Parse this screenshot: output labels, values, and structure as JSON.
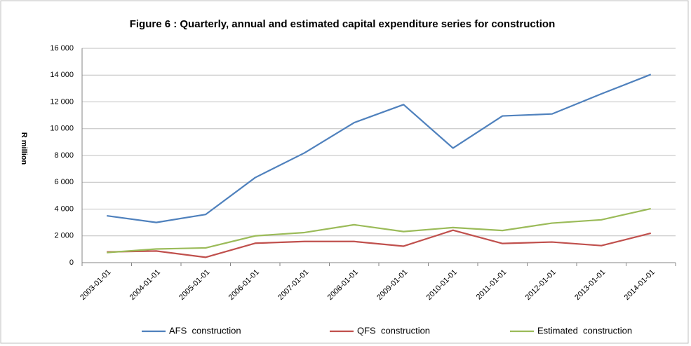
{
  "chart_data": {
    "type": "line",
    "title": "Figure 6 : Quarterly, annual and estimated capital expenditure series for construction",
    "ylabel": "R million",
    "categories": [
      "2003-01-01",
      "2004-01-01",
      "2005-01-01",
      "2006-01-01",
      "2007-01-01",
      "2008-01-01",
      "2009-01-01",
      "2010-01-01",
      "2011-01-01",
      "2012-01-01",
      "2013-01-01",
      "2014-01-01"
    ],
    "series": [
      {
        "name": "AFS  construction",
        "color": "#4f81bd",
        "values": [
          3500,
          3000,
          3600,
          6350,
          8200,
          10450,
          11800,
          8550,
          10950,
          11100,
          12600,
          14050
        ]
      },
      {
        "name": "QFS  construction",
        "color": "#c0504d",
        "values": [
          800,
          870,
          400,
          1450,
          1580,
          1580,
          1230,
          2420,
          1430,
          1540,
          1270,
          2200
        ]
      },
      {
        "name": "Estimated  construction",
        "color": "#9bbb59",
        "values": [
          750,
          1020,
          1100,
          2000,
          2250,
          2830,
          2320,
          2620,
          2400,
          2950,
          3200,
          4030
        ]
      }
    ],
    "ylim": [
      0,
      16000
    ],
    "yticks": [
      0,
      {
        "value": 2000,
        "label": "2 000"
      },
      {
        "value": 4000,
        "label": "4 000"
      },
      {
        "value": 6000,
        "label": "6 000"
      },
      {
        "value": 8000,
        "label": "8 000"
      },
      {
        "value": 10000,
        "label": "10 000"
      },
      {
        "value": 12000,
        "label": "12 000"
      },
      {
        "value": 14000,
        "label": "14 000"
      },
      {
        "value": 16000,
        "label": "16 000"
      }
    ],
    "grid": true,
    "legend": "bottom"
  }
}
